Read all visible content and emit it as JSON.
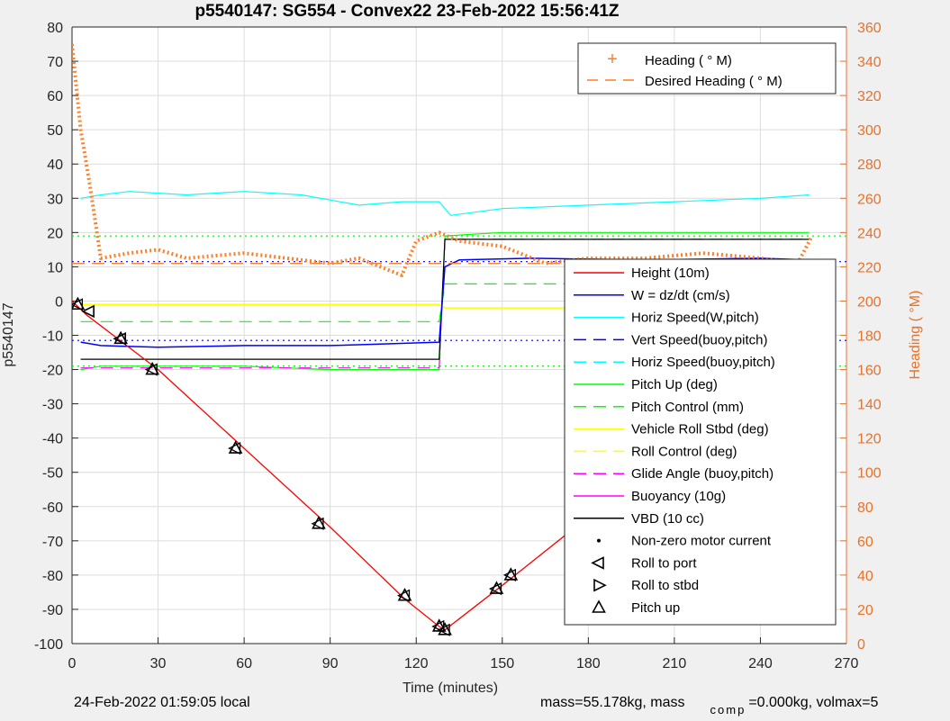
{
  "title": "p5540147: SG554 - Convex22 23-Feb-2022 15:56:41Z",
  "footer": {
    "local_time": "24-Feb-2022 01:59:05 local",
    "mass": "mass=55.178kg, mass",
    "comp_sub": "comp",
    "comp_rest": "=0.000kg, volmax=5"
  },
  "colors": {
    "heading": "#ff7f27",
    "vbd": "#000000",
    "w_dzdt": "#0000ff",
    "horiz_speed": "#00ffff",
    "pitch": "#00ff00",
    "roll": "#ffff00",
    "glide": "#ff00ff",
    "depth": "#ff0000"
  },
  "chart_data": {
    "type": "line",
    "title": "p5540147: SG554 - Convex22 23-Feb-2022 15:56:41Z",
    "xlabel": "Time (minutes)",
    "ylabel": "p5540147",
    "y2label": "Heading (  °M)",
    "xlim": [
      0,
      270
    ],
    "ylim": [
      -100,
      80
    ],
    "y2lim": [
      0,
      360
    ],
    "xticks": [
      "0",
      "30",
      "60",
      "90",
      "120",
      "150",
      "180",
      "210",
      "240",
      "270"
    ],
    "yticks": [
      "80",
      "70",
      "60",
      "50",
      "40",
      "30",
      "20",
      "10",
      "0",
      "-10",
      "-20",
      "-30",
      "-40",
      "-50",
      "-60",
      "-70",
      "-80",
      "-90",
      "-100"
    ],
    "y2ticks": [
      "360",
      "340",
      "320",
      "300",
      "280",
      "260",
      "240",
      "220",
      "200",
      "180",
      "160",
      "140",
      "120",
      "100",
      "80",
      "60",
      "40",
      "20",
      "0"
    ],
    "grid": true,
    "legend_placement": "right",
    "legend_heading": [
      "Heading (  ° M)",
      "Desired Heading (    ° M)"
    ],
    "legend_main": [
      "Height (10m)",
      "W = dz/dt (cm/s)",
      "Horiz Speed(W,pitch)",
      "Vert Speed(buoy,pitch)",
      "Horiz Speed(buoy,pitch)",
      "Pitch Up (deg)",
      "Pitch Control (mm)",
      "Vehicle Roll Stbd (deg)",
      "Roll Control (deg)",
      "Glide Angle (buoy,pitch)",
      "Buoyancy (10g)",
      "VBD (10 cc)",
      "Non-zero motor current",
      "Roll to port",
      "Roll to stbd",
      "Pitch up"
    ],
    "series": [
      {
        "name": "Height (10m)",
        "x": [
          0,
          5,
          30,
          60,
          90,
          116,
          128,
          130,
          150,
          180,
          210,
          240,
          253,
          258
        ],
        "y": [
          0,
          -4,
          -20,
          -43,
          -66,
          -87,
          -95,
          -96,
          -83,
          -63,
          -42,
          -15,
          -4,
          0
        ]
      },
      {
        "name": "W = dz/dt (cm/s)",
        "x": [
          3,
          10,
          30,
          60,
          90,
          110,
          128,
          130,
          135,
          160,
          200,
          240,
          257
        ],
        "y": [
          -12,
          -13,
          -13.5,
          -13,
          -13,
          -12.5,
          -12,
          10,
          12,
          12.5,
          12,
          12.5,
          12
        ]
      },
      {
        "name": "Horiz Speed(W,pitch)",
        "x": [
          3,
          10,
          20,
          40,
          60,
          80,
          100,
          115,
          128,
          132,
          150,
          180,
          210,
          240,
          257
        ],
        "y": [
          30,
          31,
          32,
          31,
          32,
          31,
          28,
          29,
          29,
          25,
          27,
          28,
          29,
          30,
          31
        ]
      },
      {
        "name": "Pitch Up (deg)",
        "x": [
          3,
          10,
          30,
          60,
          90,
          120,
          128,
          130,
          150,
          200,
          257
        ],
        "y": [
          -20,
          -19,
          -19,
          -19,
          -20,
          -20,
          -20,
          19,
          20,
          20,
          20
        ]
      },
      {
        "name": "Pitch Control (mm)",
        "x": [
          3,
          128,
          130,
          257
        ],
        "y": [
          -6,
          -6,
          5,
          5
        ]
      },
      {
        "name": "Vehicle Roll Stbd (deg)",
        "x": [
          3,
          128,
          130,
          257
        ],
        "y": [
          -1,
          -1,
          -2,
          -2
        ]
      },
      {
        "name": "Glide Angle (buoy,pitch)",
        "x": [
          3,
          128,
          130,
          257
        ],
        "y": [
          -19.5,
          -19.5,
          18,
          18
        ]
      },
      {
        "name": "VBD (10 cc)",
        "x": [
          3,
          128,
          130,
          257
        ],
        "y": [
          -17,
          -17,
          18,
          18
        ]
      },
      {
        "name": "Heading (  ° M)",
        "axis": "right",
        "x": [
          0,
          3,
          6,
          10,
          20,
          30,
          40,
          60,
          75,
          90,
          100,
          115,
          120,
          128,
          135,
          150,
          165,
          180,
          200,
          220,
          240,
          253,
          258
        ],
        "y": [
          350,
          300,
          270,
          225,
          228,
          230,
          225,
          228,
          225,
          222,
          225,
          215,
          235,
          240,
          235,
          232,
          222,
          225,
          225,
          228,
          225,
          222,
          238
        ]
      },
      {
        "name": "Desired Heading (    ° M)",
        "axis": "right",
        "x": [
          0,
          258
        ],
        "y": [
          222,
          222
        ]
      }
    ],
    "reference_lines": [
      {
        "axis": "left",
        "y": 19,
        "color": "#00ff00",
        "dash": "dot"
      },
      {
        "axis": "left",
        "y": -19,
        "color": "#00ff00",
        "dash": "dot"
      },
      {
        "axis": "left",
        "y": 11.5,
        "color": "#0000ff",
        "dash": "dot"
      },
      {
        "axis": "left",
        "y": -11.5,
        "color": "#0000ff",
        "dash": "dot"
      }
    ],
    "markers": {
      "pitch_up": {
        "x": [
          2,
          17,
          28,
          57,
          86,
          116,
          128,
          130,
          148,
          153,
          202,
          253
        ],
        "y": [
          -1,
          -11,
          -20,
          -43,
          -65,
          -86,
          -95,
          -96,
          -84,
          -80,
          -43,
          -4
        ]
      },
      "roll_to_port": {
        "x": [
          6,
          17
        ],
        "y": [
          -3,
          -11
        ]
      }
    }
  }
}
